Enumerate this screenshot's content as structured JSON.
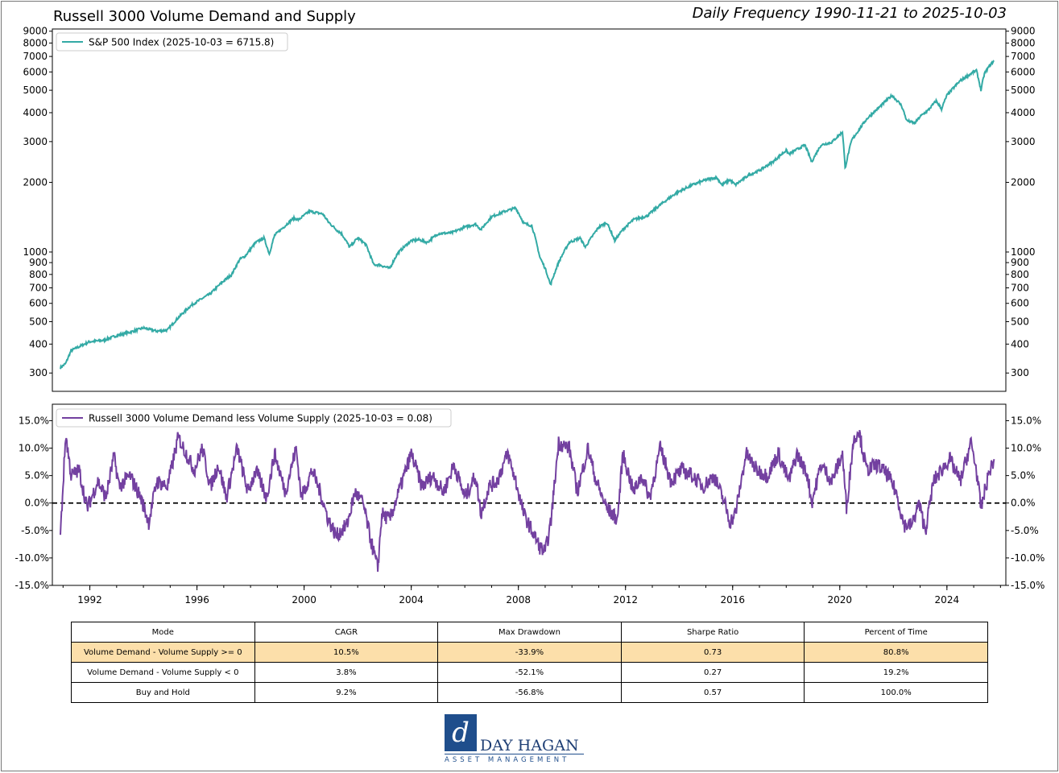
{
  "header": {
    "title": "Russell 3000 Volume Demand and Supply",
    "subtitle": "Daily Frequency 1990-11-21 to 2025-10-03"
  },
  "chart_data": [
    {
      "type": "line",
      "scale": "log",
      "legend": "S&P 500 Index (2025-10-03 = 6715.8)",
      "legend_position": "top-left",
      "color": "#33aaa5",
      "yticks": [
        300,
        400,
        500,
        600,
        700,
        800,
        900,
        1000,
        2000,
        3000,
        4000,
        5000,
        6000,
        7000,
        8000,
        9000
      ],
      "ylim": [
        250,
        9200
      ],
      "x": [
        1990.9,
        1991.1,
        1991.3,
        1992.0,
        1992.5,
        1993.0,
        1993.5,
        1994.0,
        1994.5,
        1994.9,
        1995.3,
        1995.8,
        1996.2,
        1996.5,
        1997.0,
        1997.3,
        1997.6,
        1997.8,
        1998.2,
        1998.5,
        1998.7,
        1998.9,
        1999.3,
        1999.6,
        1999.8,
        2000.2,
        2000.7,
        2000.9,
        2001.2,
        2001.4,
        2001.7,
        2002.0,
        2002.3,
        2002.6,
        2002.8,
        2003.2,
        2003.5,
        2004.0,
        2004.3,
        2004.6,
        2005.0,
        2005.5,
        2006.0,
        2006.4,
        2006.6,
        2007.0,
        2007.5,
        2007.9,
        2008.2,
        2008.5,
        2008.8,
        2009.0,
        2009.2,
        2009.5,
        2009.9,
        2010.3,
        2010.5,
        2011.0,
        2011.3,
        2011.6,
        2011.9,
        2012.3,
        2012.8,
        2013.3,
        2013.9,
        2014.5,
        2015.0,
        2015.4,
        2015.6,
        2015.9,
        2016.1,
        2016.6,
        2017.0,
        2017.5,
        2018.0,
        2018.1,
        2018.7,
        2018.95,
        2019.3,
        2019.7,
        2020.1,
        2020.2,
        2020.45,
        2020.7,
        2021.0,
        2021.5,
        2021.95,
        2022.3,
        2022.5,
        2022.8,
        2023.0,
        2023.3,
        2023.6,
        2023.8,
        2024.0,
        2024.5,
        2024.9,
        2025.1,
        2025.27,
        2025.4,
        2025.6,
        2025.76
      ],
      "values": [
        316,
        330,
        375,
        410,
        415,
        435,
        450,
        470,
        455,
        460,
        520,
        590,
        630,
        660,
        750,
        800,
        930,
        960,
        1100,
        1150,
        980,
        1180,
        1300,
        1400,
        1380,
        1500,
        1460,
        1350,
        1250,
        1200,
        1050,
        1150,
        1080,
        880,
        880,
        850,
        990,
        1120,
        1130,
        1100,
        1200,
        1210,
        1280,
        1320,
        1250,
        1420,
        1500,
        1550,
        1330,
        1300,
        950,
        850,
        720,
        900,
        1100,
        1150,
        1050,
        1280,
        1340,
        1120,
        1250,
        1380,
        1430,
        1600,
        1800,
        1950,
        2050,
        2100,
        1950,
        2050,
        1950,
        2150,
        2250,
        2450,
        2750,
        2650,
        2900,
        2450,
        2900,
        2980,
        3300,
        2300,
        3050,
        3350,
        3750,
        4250,
        4750,
        4300,
        3700,
        3600,
        3850,
        4100,
        4500,
        4150,
        4750,
        5500,
        5900,
        6100,
        5000,
        5900,
        6400,
        6715.8
      ]
    },
    {
      "type": "line",
      "legend": "Russell 3000 Volume Demand less Volume Supply (2025-10-03 = 0.08)",
      "legend_position": "top-left",
      "color": "#7340a0",
      "reference_line": 0.0,
      "yticks": [
        "-15.0%",
        "-10.0%",
        "-5.0%",
        "0.0%",
        "5.0%",
        "10.0%",
        "15.0%"
      ],
      "ylim": [
        -15,
        18
      ],
      "xticks": [
        1992,
        1996,
        2000,
        2004,
        2008,
        2012,
        2016,
        2020,
        2024
      ],
      "xlim": [
        1990.6,
        2026.2
      ],
      "x": [
        1990.9,
        1991.1,
        1991.3,
        1991.6,
        1991.9,
        1992.3,
        1992.6,
        1992.9,
        1993.1,
        1993.5,
        1993.9,
        1994.2,
        1994.5,
        1994.9,
        1995.3,
        1995.6,
        1995.9,
        1996.2,
        1996.5,
        1996.8,
        1997.1,
        1997.5,
        1997.9,
        1998.2,
        1998.6,
        1998.9,
        1999.3,
        1999.7,
        1999.9,
        2000.3,
        2000.6,
        2000.9,
        2001.2,
        2001.6,
        2001.9,
        2002.2,
        2002.5,
        2002.75,
        2002.9,
        2003.2,
        2003.6,
        2004.0,
        2004.4,
        2004.8,
        2005.2,
        2005.6,
        2006.0,
        2006.4,
        2006.6,
        2006.9,
        2007.2,
        2007.6,
        2007.9,
        2008.2,
        2008.5,
        2008.8,
        2009.0,
        2009.2,
        2009.5,
        2009.9,
        2010.2,
        2010.6,
        2010.9,
        2011.3,
        2011.7,
        2011.9,
        2012.3,
        2012.6,
        2012.9,
        2013.3,
        2013.7,
        2014.1,
        2014.5,
        2014.9,
        2015.3,
        2015.7,
        2015.9,
        2016.1,
        2016.5,
        2016.9,
        2017.3,
        2017.7,
        2018.1,
        2018.4,
        2018.8,
        2018.95,
        2019.3,
        2019.7,
        2020.1,
        2020.25,
        2020.5,
        2020.7,
        2021.0,
        2021.4,
        2021.8,
        2022.1,
        2022.4,
        2022.7,
        2022.95,
        2023.2,
        2023.5,
        2023.8,
        2024.1,
        2024.5,
        2024.9,
        2025.1,
        2025.27,
        2025.45,
        2025.6,
        2025.76
      ],
      "values": [
        -6.0,
        12.5,
        5.0,
        6.0,
        -1.0,
        4.0,
        1.0,
        8.5,
        3.0,
        5.0,
        1.0,
        -3.5,
        4.0,
        3.0,
        12.0,
        9.0,
        6.0,
        10.0,
        3.0,
        7.0,
        1.0,
        10.0,
        2.0,
        6.0,
        1.0,
        9.0,
        2.0,
        10.0,
        1.0,
        6.0,
        2.0,
        -3.0,
        -6.0,
        -4.0,
        2.0,
        0.0,
        -7.0,
        -12.0,
        -2.0,
        -3.0,
        3.0,
        9.0,
        3.0,
        5.0,
        2.0,
        7.0,
        1.0,
        5.0,
        -2.0,
        3.0,
        4.0,
        9.0,
        4.0,
        -2.0,
        -5.0,
        -8.0,
        -9.0,
        -4.0,
        11.0,
        10.0,
        2.0,
        10.0,
        4.0,
        -1.0,
        -3.0,
        9.0,
        2.0,
        5.0,
        1.0,
        10.0,
        4.0,
        6.0,
        5.0,
        3.0,
        5.0,
        0.0,
        -3.5,
        -2.0,
        9.0,
        6.0,
        5.0,
        9.0,
        4.0,
        9.0,
        5.0,
        0.0,
        7.0,
        4.0,
        9.0,
        -1.0,
        11.0,
        13.5,
        6.0,
        7.0,
        5.0,
        2.0,
        -4.0,
        -4.0,
        0.0,
        -5.0,
        4.0,
        6.0,
        8.0,
        4.0,
        11.0,
        6.0,
        -1.0,
        3.0,
        6.0,
        8.0
      ]
    }
  ],
  "table": {
    "headers": [
      "Mode",
      "CAGR",
      "Max Drawdown",
      "Sharpe Ratio",
      "Percent of Time"
    ],
    "rows": [
      [
        "Volume Demand - Volume Supply >= 0",
        "10.5%",
        "-33.9%",
        "0.73",
        "80.8%"
      ],
      [
        "Volume Demand - Volume Supply < 0",
        "3.8%",
        "-52.1%",
        "0.27",
        "19.2%"
      ],
      [
        "Buy and Hold",
        "9.2%",
        "-56.8%",
        "0.57",
        "100.0%"
      ]
    ],
    "highlight_color": "#fcdfaa"
  },
  "logo": {
    "mark": "d",
    "name": "DAY HAGAN",
    "tagline": "ASSET MANAGEMENT"
  }
}
